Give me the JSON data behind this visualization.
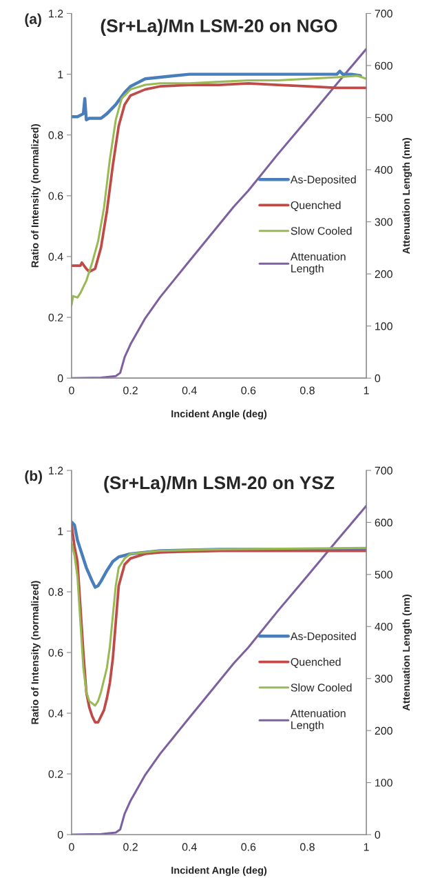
{
  "chart_data": [
    {
      "type": "line",
      "title": "(Sr+La)/Mn LSM-20 on NGO",
      "xlabel": "Incident Angle (deg)",
      "ylabel": "Ratio of Intensity (normalized)",
      "y2label": "Attenuation Length (nm)",
      "annotations": [
        "(a)"
      ],
      "xlim": [
        0,
        1
      ],
      "xticks": [
        0,
        0.2,
        0.4,
        0.6,
        0.8,
        1
      ],
      "ylim": [
        0,
        1.2
      ],
      "yticks": [
        0,
        0.2,
        0.4,
        0.6,
        0.8,
        1,
        1.2
      ],
      "y2lim": [
        0,
        700
      ],
      "y2ticks": [
        0,
        100,
        200,
        300,
        400,
        500,
        600,
        700
      ],
      "grid": false,
      "legend": "right",
      "marker": "none",
      "line_style": "solid",
      "series": [
        {
          "name": "As-Deposited",
          "color": "#4a7ebb",
          "x": [
            0,
            0.02,
            0.04,
            0.045,
            0.05,
            0.06,
            0.1,
            0.12,
            0.15,
            0.18,
            0.2,
            0.25,
            0.3,
            0.4,
            0.5,
            0.6,
            0.7,
            0.8,
            0.9,
            0.91,
            0.92,
            0.95,
            0.98
          ],
          "values": [
            0.86,
            0.86,
            0.87,
            0.92,
            0.85,
            0.855,
            0.855,
            0.87,
            0.9,
            0.94,
            0.96,
            0.985,
            0.99,
            1.0,
            1.0,
            1.0,
            1.0,
            1.0,
            1.0,
            1.01,
            1.0,
            1.0,
            0.995
          ]
        },
        {
          "name": "Quenched",
          "color": "#be4b48",
          "x": [
            0,
            0.03,
            0.035,
            0.05,
            0.06,
            0.08,
            0.1,
            0.12,
            0.14,
            0.16,
            0.18,
            0.2,
            0.25,
            0.3,
            0.4,
            0.5,
            0.6,
            0.7,
            0.8,
            0.9,
            1.0
          ],
          "values": [
            0.37,
            0.37,
            0.38,
            0.36,
            0.35,
            0.36,
            0.43,
            0.55,
            0.7,
            0.83,
            0.9,
            0.93,
            0.95,
            0.96,
            0.965,
            0.965,
            0.97,
            0.965,
            0.96,
            0.955,
            0.955
          ]
        },
        {
          "name": "Slow Cooled",
          "color": "#98b954",
          "x": [
            0,
            0.005,
            0.02,
            0.03,
            0.05,
            0.07,
            0.09,
            0.11,
            0.13,
            0.15,
            0.17,
            0.2,
            0.25,
            0.3,
            0.4,
            0.5,
            0.6,
            0.7,
            0.8,
            0.9,
            0.97,
            1.0
          ],
          "values": [
            0.24,
            0.27,
            0.265,
            0.28,
            0.32,
            0.38,
            0.45,
            0.56,
            0.72,
            0.85,
            0.92,
            0.95,
            0.965,
            0.97,
            0.97,
            0.975,
            0.98,
            0.98,
            0.985,
            0.99,
            0.995,
            0.985
          ]
        },
        {
          "name": "Attenuation\nLength",
          "color": "#7d60a0",
          "axis": "y2",
          "x": [
            0,
            0.1,
            0.15,
            0.165,
            0.18,
            0.2,
            0.25,
            0.3,
            0.4,
            0.55,
            0.6,
            0.7,
            0.8,
            0.9,
            1.0
          ],
          "values": [
            0,
            1,
            4,
            10,
            40,
            65,
            115,
            155,
            225,
            329,
            360,
            430,
            497,
            565,
            632
          ]
        }
      ]
    },
    {
      "type": "line",
      "title": "(Sr+La)/Mn LSM-20 on YSZ",
      "xlabel": "Incident Angle (deg)",
      "ylabel": "Ratio of Intensity (normalized)",
      "y2label": "Attenuation Length (nm)",
      "annotations": [
        "(b)"
      ],
      "xlim": [
        0,
        1
      ],
      "xticks": [
        0,
        0.2,
        0.4,
        0.6,
        0.8,
        1
      ],
      "ylim": [
        0,
        1.2
      ],
      "yticks": [
        0,
        0.2,
        0.4,
        0.6,
        0.8,
        1,
        1.2
      ],
      "y2lim": [
        0,
        700
      ],
      "y2ticks": [
        0,
        100,
        200,
        300,
        400,
        500,
        600,
        700
      ],
      "grid": false,
      "legend": "right",
      "marker": "none",
      "line_style": "solid",
      "series": [
        {
          "name": "As-Deposited",
          "color": "#4a7ebb",
          "x": [
            0,
            0.01,
            0.02,
            0.03,
            0.05,
            0.07,
            0.08,
            0.09,
            0.1,
            0.12,
            0.14,
            0.16,
            0.2,
            0.25,
            0.3,
            0.5,
            0.8,
            1.0
          ],
          "values": [
            1.03,
            1.02,
            0.97,
            0.94,
            0.88,
            0.835,
            0.815,
            0.82,
            0.835,
            0.87,
            0.9,
            0.915,
            0.925,
            0.93,
            0.935,
            0.94,
            0.94,
            0.94
          ]
        },
        {
          "name": "Quenched",
          "color": "#be4b48",
          "x": [
            0,
            0.01,
            0.02,
            0.03,
            0.04,
            0.05,
            0.06,
            0.07,
            0.08,
            0.09,
            0.1,
            0.11,
            0.12,
            0.13,
            0.14,
            0.15,
            0.16,
            0.18,
            0.2,
            0.25,
            0.3,
            0.5,
            1.0
          ],
          "values": [
            1.02,
            0.95,
            0.9,
            0.75,
            0.6,
            0.47,
            0.42,
            0.39,
            0.37,
            0.37,
            0.39,
            0.41,
            0.45,
            0.5,
            0.58,
            0.7,
            0.82,
            0.89,
            0.91,
            0.925,
            0.93,
            0.935,
            0.935
          ]
        },
        {
          "name": "Slow Cooled",
          "color": "#98b954",
          "x": [
            0,
            0.01,
            0.02,
            0.03,
            0.04,
            0.05,
            0.06,
            0.08,
            0.09,
            0.1,
            0.12,
            0.13,
            0.14,
            0.15,
            0.16,
            0.18,
            0.2,
            0.3,
            0.5,
            1.0
          ],
          "values": [
            0.96,
            0.92,
            0.85,
            0.7,
            0.55,
            0.47,
            0.44,
            0.425,
            0.44,
            0.47,
            0.55,
            0.62,
            0.72,
            0.82,
            0.88,
            0.91,
            0.925,
            0.935,
            0.94,
            0.945
          ]
        },
        {
          "name": "Attenuation\nLength",
          "color": "#7d60a0",
          "axis": "y2",
          "x": [
            0,
            0.1,
            0.15,
            0.165,
            0.18,
            0.2,
            0.25,
            0.3,
            0.4,
            0.55,
            0.6,
            0.7,
            0.8,
            0.9,
            1.0
          ],
          "values": [
            0,
            1,
            4,
            10,
            40,
            65,
            115,
            155,
            225,
            329,
            360,
            430,
            497,
            565,
            632
          ]
        }
      ]
    }
  ]
}
